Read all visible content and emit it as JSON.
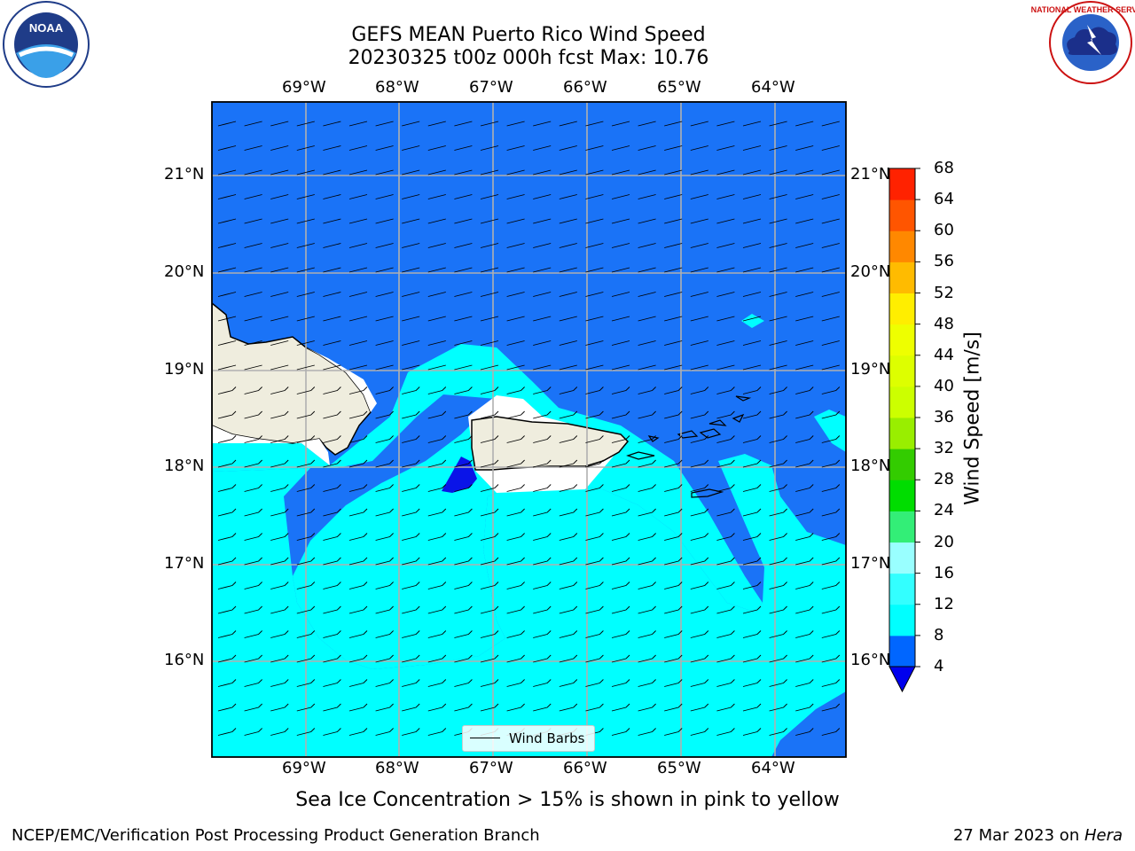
{
  "title_line1": "GEFS MEAN Puerto Rico Wind Speed",
  "title_line2": "20230325 t00z 000h fcst   Max: 10.76",
  "lon_ticks": [
    "69°W",
    "68°W",
    "67°W",
    "66°W",
    "65°W",
    "64°W"
  ],
  "lat_ticks": [
    "21°N",
    "20°N",
    "19°N",
    "18°N",
    "17°N",
    "16°N"
  ],
  "legend_label": "Wind Barbs",
  "colorbar": {
    "title": "Wind Speed [m/s]",
    "levels": [
      "4",
      "8",
      "12",
      "16",
      "20",
      "24",
      "28",
      "32",
      "36",
      "40",
      "44",
      "48",
      "52",
      "56",
      "60",
      "64",
      "68"
    ],
    "colors": [
      "#0066ff",
      "#00ffff",
      "#33ffff",
      "#99ffff",
      "#33ee77",
      "#00dd00",
      "#33cc00",
      "#99ee00",
      "#ccff00",
      "#ddff00",
      "#eeff00",
      "#ffee00",
      "#ffbb00",
      "#ff8800",
      "#ff5500",
      "#ff2200"
    ],
    "under_color": "#0000ee"
  },
  "map_colors": {
    "ocean_low": "#1a73f7",
    "ocean_mid": "#00ffff",
    "land": "#efedde",
    "darkblue": "#0a14e8"
  },
  "caption": "Sea Ice Concentration > 15% is shown in pink to yellow",
  "footer_left": "NCEP/EMC/Verification Post Processing Product Generation Branch",
  "footer_date": "27 Mar 2023 on ",
  "footer_machine": "Hera",
  "logo_left": "NOAA",
  "logo_right": "NATIONAL WEATHER SERVICE"
}
